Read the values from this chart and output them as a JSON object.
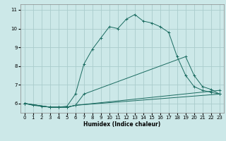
{
  "xlabel": "Humidex (Indice chaleur)",
  "ylabel": "",
  "bg_color": "#cce8e8",
  "grid_color": "#aacccc",
  "line_color": "#1a6b60",
  "xlim": [
    -0.5,
    23.5
  ],
  "ylim": [
    5.5,
    11.3
  ],
  "xticks": [
    0,
    1,
    2,
    3,
    4,
    5,
    6,
    7,
    8,
    9,
    10,
    11,
    12,
    13,
    14,
    15,
    16,
    17,
    18,
    19,
    20,
    21,
    22,
    23
  ],
  "yticks": [
    6,
    7,
    8,
    9,
    10,
    11
  ],
  "lines": [
    {
      "x": [
        0,
        1,
        2,
        3,
        4,
        5,
        6,
        7,
        8,
        9,
        10,
        11,
        12,
        13,
        14,
        15,
        16,
        17,
        18,
        19,
        20,
        21,
        22,
        23
      ],
      "y": [
        6.0,
        5.9,
        5.85,
        5.8,
        5.8,
        5.85,
        6.5,
        8.1,
        8.9,
        9.5,
        10.1,
        10.0,
        10.5,
        10.75,
        10.4,
        10.3,
        10.1,
        9.8,
        8.5,
        7.5,
        6.9,
        6.7,
        6.6,
        6.5
      ]
    },
    {
      "x": [
        0,
        3,
        4,
        5,
        6,
        23
      ],
      "y": [
        6.0,
        5.8,
        5.8,
        5.8,
        5.9,
        6.5
      ]
    },
    {
      "x": [
        0,
        3,
        4,
        5,
        6,
        23
      ],
      "y": [
        6.0,
        5.8,
        5.8,
        5.8,
        5.9,
        6.7
      ]
    },
    {
      "x": [
        0,
        3,
        4,
        5,
        6,
        7,
        19,
        20,
        21,
        22,
        23
      ],
      "y": [
        6.0,
        5.8,
        5.8,
        5.8,
        5.9,
        6.5,
        8.5,
        7.5,
        6.9,
        6.75,
        6.5
      ]
    }
  ]
}
